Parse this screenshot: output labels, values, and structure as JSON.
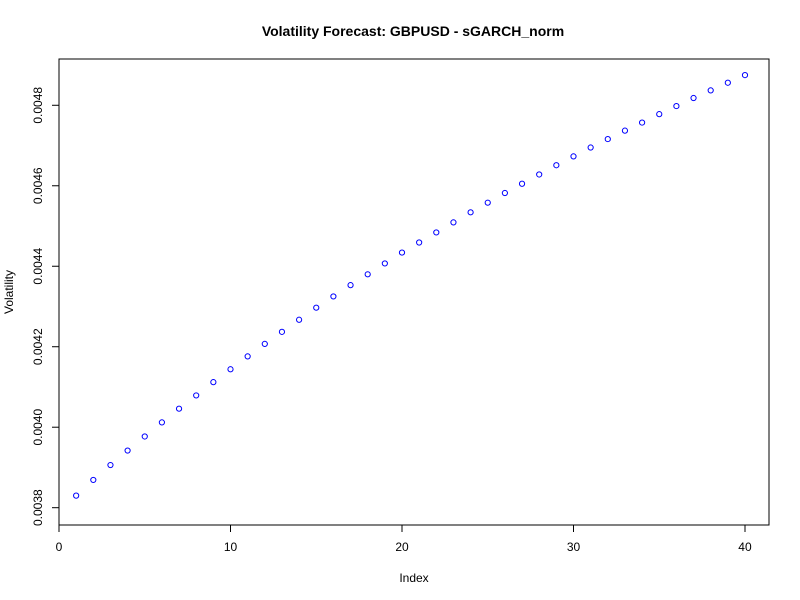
{
  "chart_data": {
    "type": "scatter",
    "title": "Volatility Forecast: GBPUSD - sGARCH_norm",
    "xlabel": "Index",
    "ylabel": "Volatility",
    "xlim": [
      0,
      41.4
    ],
    "ylim": [
      0.003757,
      0.004915
    ],
    "x_ticks": [
      0,
      10,
      20,
      30,
      40
    ],
    "x_tick_labels": [
      "0",
      "10",
      "20",
      "30",
      "40"
    ],
    "y_ticks": [
      0.0038,
      0.004,
      0.0042,
      0.0044,
      0.0046,
      0.0048
    ],
    "y_tick_labels": [
      "0.0038",
      "0.0040",
      "0.0042",
      "0.0044",
      "0.0046",
      "0.0048"
    ],
    "grid": false,
    "point_color": "#0000ff",
    "series": [
      {
        "x": [
          1,
          2,
          3,
          4,
          5,
          6,
          7,
          8,
          9,
          10,
          11,
          12,
          13,
          14,
          15,
          16,
          17,
          18,
          19,
          20,
          21,
          22,
          23,
          24,
          25,
          26,
          27,
          28,
          29,
          30,
          31,
          32,
          33,
          34,
          35,
          36,
          37,
          38,
          39,
          40
        ],
        "values": [
          0.00383,
          0.003869,
          0.003906,
          0.003942,
          0.003977,
          0.004012,
          0.004046,
          0.004079,
          0.004112,
          0.004144,
          0.004176,
          0.004207,
          0.004237,
          0.004267,
          0.004297,
          0.004325,
          0.004353,
          0.00438,
          0.004407,
          0.004434,
          0.004459,
          0.004484,
          0.004509,
          0.004534,
          0.004558,
          0.004582,
          0.004605,
          0.004628,
          0.004651,
          0.004673,
          0.004695,
          0.004716,
          0.004737,
          0.004757,
          0.004778,
          0.004798,
          0.004818,
          0.004837,
          0.004856,
          0.004875
        ]
      }
    ]
  }
}
